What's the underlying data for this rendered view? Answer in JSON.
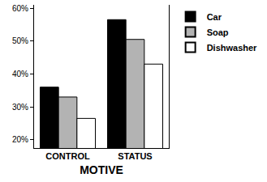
{
  "chart_data": {
    "type": "bar",
    "x_label": "MOTIVE",
    "categories": [
      "CONTROL",
      "STATUS"
    ],
    "series": [
      {
        "name": "Car",
        "color": "#000000",
        "values": [
          36,
          56.5
        ]
      },
      {
        "name": "Soap",
        "color": "#b3b3b3",
        "values": [
          33,
          50.5
        ]
      },
      {
        "name": "Dishwasher",
        "color": "#ffffff",
        "values": [
          26.5,
          43
        ]
      }
    ],
    "ylim": [
      17.5,
      61
    ],
    "yticks": [
      {
        "value": 20,
        "label": "20%"
      },
      {
        "value": 30,
        "label": "30%"
      },
      {
        "value": 40,
        "label": "40%"
      },
      {
        "value": 50,
        "label": "50%"
      },
      {
        "value": 60,
        "label": "60%"
      }
    ],
    "grid": false,
    "legend": "right"
  }
}
